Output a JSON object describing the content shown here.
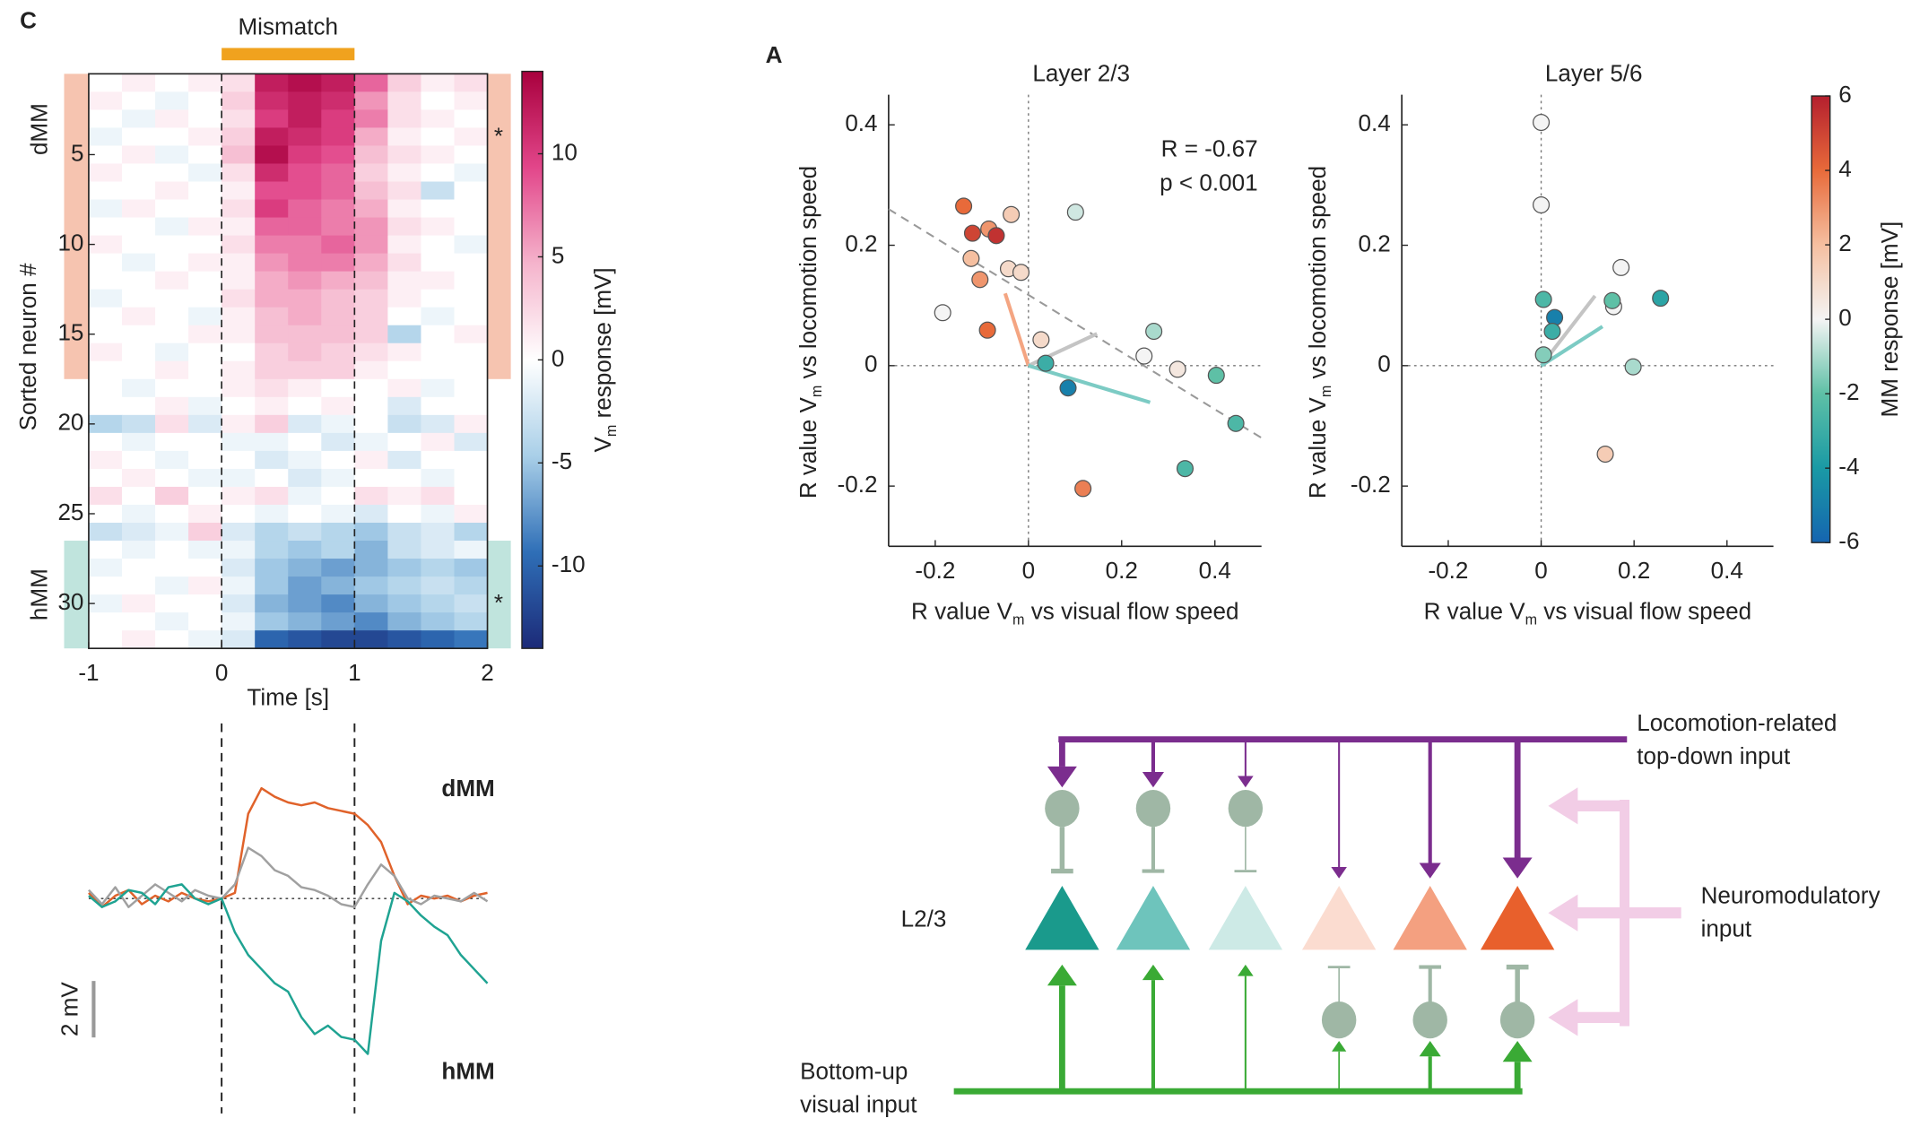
{
  "chart_data": [
    {
      "type": "heatmap",
      "panel_label": "C",
      "annotation": "Mismatch",
      "span": [
        0,
        1
      ],
      "xlabel": "Time [s]",
      "ylabel": "Sorted neuron #",
      "xlim": [
        -1,
        2
      ],
      "xticks": [
        -1,
        0,
        1,
        2
      ],
      "ylim": [
        0.5,
        32.5
      ],
      "yticks": [
        5,
        10,
        15,
        20,
        25,
        30
      ],
      "bins": [
        -1,
        -0.75,
        -0.5,
        -0.25,
        0,
        0.25,
        0.5,
        0.75,
        1,
        1.25,
        1.5,
        1.75,
        2
      ],
      "rows": [
        1,
        2,
        3,
        4,
        5,
        6,
        7,
        8,
        9,
        10,
        11,
        12,
        13,
        14,
        15,
        16,
        17,
        18,
        19,
        20,
        21,
        22,
        23,
        24,
        25,
        26,
        27,
        28,
        29,
        30,
        31,
        32
      ],
      "values": [
        [
          0,
          1,
          0,
          1,
          2,
          12,
          13,
          12,
          8,
          3,
          1,
          2
        ],
        [
          1,
          0,
          -1,
          0,
          3,
          11,
          12,
          11,
          6,
          2,
          0,
          1
        ],
        [
          0,
          -1,
          1,
          0,
          2,
          10,
          12,
          10,
          7,
          2,
          1,
          0
        ],
        [
          -1,
          0,
          0,
          1,
          3,
          12,
          11,
          10,
          5,
          1,
          0,
          1
        ],
        [
          0,
          1,
          -1,
          0,
          4,
          13,
          10,
          9,
          4,
          2,
          1,
          0
        ],
        [
          1,
          0,
          0,
          -1,
          2,
          11,
          9,
          8,
          3,
          1,
          0,
          -1
        ],
        [
          0,
          0,
          1,
          0,
          1,
          9,
          9,
          8,
          4,
          2,
          -3,
          0
        ],
        [
          -1,
          1,
          0,
          0,
          2,
          10,
          8,
          7,
          5,
          1,
          0,
          0
        ],
        [
          0,
          0,
          -1,
          1,
          1,
          8,
          8,
          7,
          6,
          2,
          1,
          0
        ],
        [
          1,
          0,
          0,
          0,
          2,
          7,
          7,
          8,
          6,
          1,
          0,
          -1
        ],
        [
          0,
          -1,
          0,
          1,
          1,
          6,
          7,
          7,
          5,
          2,
          0,
          0
        ],
        [
          0,
          0,
          1,
          0,
          1,
          5,
          6,
          5,
          4,
          1,
          1,
          0
        ],
        [
          -1,
          0,
          0,
          0,
          2,
          5,
          5,
          4,
          3,
          1,
          0,
          0
        ],
        [
          0,
          1,
          0,
          -1,
          1,
          4,
          5,
          4,
          3,
          0,
          -1,
          0
        ],
        [
          0,
          0,
          0,
          1,
          1,
          4,
          4,
          4,
          3,
          -4,
          0,
          1
        ],
        [
          1,
          0,
          -1,
          0,
          0,
          3,
          4,
          3,
          2,
          1,
          0,
          0
        ],
        [
          0,
          0,
          1,
          0,
          1,
          3,
          3,
          3,
          1,
          0,
          0,
          0
        ],
        [
          0,
          -1,
          0,
          0,
          1,
          2,
          1,
          0,
          0,
          1,
          -1,
          0
        ],
        [
          0,
          0,
          1,
          -1,
          0,
          1,
          0,
          1,
          0,
          -2,
          0,
          0
        ],
        [
          -4,
          -3,
          2,
          -2,
          1,
          3,
          -2,
          -1,
          0,
          -3,
          -2,
          1
        ],
        [
          0,
          -1,
          0,
          0,
          -1,
          -1,
          0,
          -2,
          -1,
          0,
          1,
          -2
        ],
        [
          1,
          0,
          -1,
          0,
          0,
          -2,
          -1,
          0,
          1,
          -2,
          0,
          0
        ],
        [
          0,
          1,
          0,
          -1,
          -1,
          0,
          -2,
          -1,
          0,
          0,
          -1,
          0
        ],
        [
          2,
          0,
          3,
          0,
          1,
          2,
          -1,
          0,
          2,
          1,
          2,
          0
        ],
        [
          0,
          -1,
          0,
          1,
          0,
          -1,
          0,
          -1,
          -2,
          0,
          -1,
          1
        ],
        [
          -3,
          -2,
          -1,
          3,
          -2,
          -4,
          -3,
          -4,
          -5,
          -3,
          -2,
          -4
        ],
        [
          0,
          -1,
          0,
          -1,
          -1,
          -4,
          -5,
          -4,
          -6,
          -3,
          -2,
          -1
        ],
        [
          -1,
          0,
          0,
          0,
          -2,
          -5,
          -6,
          -7,
          -6,
          -5,
          -4,
          -5
        ],
        [
          0,
          0,
          -1,
          1,
          -1,
          -5,
          -7,
          -6,
          -5,
          -4,
          -3,
          -4
        ],
        [
          -1,
          1,
          0,
          0,
          -2,
          -6,
          -7,
          -8,
          -6,
          -5,
          -4,
          -3
        ],
        [
          0,
          0,
          -1,
          0,
          -1,
          -5,
          -6,
          -7,
          -8,
          -6,
          -5,
          -4
        ],
        [
          0,
          1,
          0,
          -1,
          -2,
          -10,
          -11,
          -12,
          -12,
          -11,
          -10,
          -9
        ]
      ],
      "groups": [
        {
          "name": "dMM",
          "rows": [
            1,
            17
          ],
          "color": "#f6c4b0",
          "label_color": "#f2a98e",
          "marker": "*"
        },
        {
          "name": "hMM",
          "rows": [
            27,
            32
          ],
          "color": "#c0e4dd",
          "label_color": "#7fcbbd",
          "marker": "*"
        }
      ],
      "colorbar": {
        "clim": [
          -14,
          14
        ],
        "ticks": [
          -10,
          -5,
          0,
          5,
          10
        ],
        "label": {
          "text": "V",
          "sub": "m",
          "rest": " response [mV]"
        },
        "colormap": [
          "#1c2a78",
          "#2f6fb7",
          "#a9cfe8",
          "#ffffff",
          "#f5b4cc",
          "#e2468a",
          "#a8003d"
        ]
      }
    },
    {
      "type": "line",
      "xlim": [
        -1,
        2
      ],
      "ylim": [
        -7,
        5.5
      ],
      "span": [
        0,
        1
      ],
      "zero_line": true,
      "x": [
        -1,
        -0.9,
        -0.8,
        -0.7,
        -0.6,
        -0.5,
        -0.4,
        -0.3,
        -0.2,
        -0.1,
        0,
        0.1,
        0.2,
        0.3,
        0.4,
        0.5,
        0.6,
        0.7,
        0.8,
        0.9,
        1,
        1.1,
        1.2,
        1.3,
        1.4,
        1.5,
        1.6,
        1.7,
        1.8,
        1.9,
        2
      ],
      "series": [
        {
          "name": "dMM",
          "color": "#e0622a",
          "values": [
            0.2,
            -0.3,
            0.1,
            0.3,
            -0.2,
            0.1,
            -0.1,
            0.2,
            0,
            -0.1,
            0,
            0.2,
            3.0,
            3.9,
            3.6,
            3.4,
            3.3,
            3.4,
            3.2,
            3.1,
            3.0,
            2.6,
            2.0,
            0.8,
            -0.2,
            0.1,
            0,
            0.1,
            -0.1,
            0.1,
            0.2
          ]
        },
        {
          "color": "#a0a0a0",
          "values": [
            0.3,
            -0.2,
            0.4,
            -0.3,
            0.1,
            0.5,
            0.2,
            -0.1,
            0.3,
            0.1,
            0,
            0.5,
            1.8,
            1.5,
            1.0,
            0.8,
            0.4,
            0.3,
            0.1,
            -0.2,
            -0.3,
            0.5,
            1.2,
            0.8,
            0,
            -0.2,
            0.1,
            0,
            -0.1,
            0.2,
            -0.1
          ]
        },
        {
          "name": "hMM",
          "color": "#1fa392",
          "values": [
            0.1,
            -0.3,
            -0.1,
            0.3,
            0.2,
            -0.2,
            0.4,
            0.5,
            0,
            -0.2,
            0,
            -1.2,
            -2.0,
            -2.5,
            -3.0,
            -3.3,
            -4.2,
            -4.8,
            -4.5,
            -4.9,
            -5.0,
            -5.5,
            -1.5,
            0.2,
            -0.1,
            -0.6,
            -1.0,
            -1.3,
            -2.0,
            -2.5,
            -3.0
          ]
        }
      ],
      "scalebar": {
        "value": 2,
        "label": "2 mV"
      }
    },
    {
      "type": "scatter",
      "panel_label": "A",
      "title": "Layer 2/3",
      "title_color": "#8a8a8a",
      "xlabel": {
        "text": "R value V",
        "sub": "m",
        "rest": " vs visual flow speed"
      },
      "ylabel": {
        "text": "R value V",
        "sub": "m",
        "rest": " vs locomotion speed"
      },
      "xlim": [
        -0.3,
        0.5
      ],
      "ylim": [
        -0.3,
        0.45
      ],
      "xticks": [
        -0.2,
        0,
        0.2,
        0.4
      ],
      "yticks": [
        -0.2,
        0,
        0.2,
        0.4
      ],
      "zero_lines": true,
      "annotations": [
        "R = -0.67",
        "p < 0.001"
      ],
      "fit": {
        "x": [
          -0.3,
          0.5
        ],
        "y": [
          0.26,
          -0.12
        ]
      },
      "vectors": [
        {
          "color": "#f4a582",
          "x": -0.05,
          "y": 0.12
        },
        {
          "color": "#c4c4c4",
          "x": 0.147,
          "y": 0.053
        },
        {
          "color": "#7ccbc4",
          "x": 0.261,
          "y": -0.061
        }
      ],
      "x": [
        -0.139,
        -0.12,
        -0.085,
        -0.069,
        -0.037,
        -0.123,
        -0.104,
        -0.043,
        -0.016,
        -0.184,
        -0.088,
        0.101,
        0.027,
        0.037,
        0.085,
        0.117,
        0.269,
        0.248,
        0.32,
        0.403,
        0.445,
        0.336
      ],
      "y": [
        0.265,
        0.22,
        0.227,
        0.216,
        0.251,
        0.178,
        0.143,
        0.161,
        0.155,
        0.088,
        0.059,
        0.255,
        0.043,
        0.004,
        -0.037,
        -0.204,
        0.057,
        0.016,
        -0.006,
        -0.016,
        -0.096,
        -0.171
      ],
      "z": [
        4,
        5,
        3,
        5.5,
        1.5,
        2,
        3,
        1,
        1,
        0,
        4,
        -0.5,
        1,
        -3,
        -5,
        3.5,
        -1,
        0,
        0.5,
        -2,
        -2.5,
        -2.5
      ]
    },
    {
      "type": "scatter",
      "title": "Layer 5/6",
      "title_color": "#111111",
      "xlabel": {
        "text": "R value V",
        "sub": "m",
        "rest": " vs visual flow speed"
      },
      "ylabel": {
        "text": "R value V",
        "sub": "m",
        "rest": " vs locomotion speed"
      },
      "xlim": [
        -0.3,
        0.5
      ],
      "ylim": [
        -0.3,
        0.45
      ],
      "xticks": [
        -0.2,
        0,
        0.2,
        0.4
      ],
      "yticks": [
        -0.2,
        0,
        0.2,
        0.4
      ],
      "zero_lines": true,
      "vectors": [
        {
          "color": "#c4c4c4",
          "x": 0.116,
          "y": 0.116
        },
        {
          "color": "#7ccbc4",
          "x": 0.132,
          "y": 0.065
        }
      ],
      "x": [
        0,
        0,
        0.005,
        0.029,
        0.024,
        0.005,
        0.172,
        0.156,
        0.153,
        0.257,
        0.198,
        0.138
      ],
      "y": [
        0.404,
        0.267,
        0.11,
        0.08,
        0.057,
        0.018,
        0.163,
        0.098,
        0.108,
        0.112,
        -0.002,
        -0.147
      ],
      "z": [
        0,
        0,
        -2.5,
        -5,
        -3,
        -1.5,
        0,
        0,
        -2,
        -3.5,
        -1,
        1.5
      ],
      "colorbar": {
        "clim": [
          -6,
          6
        ],
        "ticks": [
          -6,
          -4,
          -2,
          0,
          2,
          4,
          6
        ],
        "label": "MM response [mV]",
        "colormap": [
          "#1565b0",
          "#1a9aa5",
          "#5ec0a6",
          "#f4f4f4",
          "#f5bfa0",
          "#e86a3a",
          "#b41f2e"
        ]
      }
    }
  ],
  "diagram": {
    "layer_label": "L2/3",
    "top_down": [
      "Locomotion-related",
      "top-down input"
    ],
    "neuromodulatory": [
      "Neuromodulatory",
      "input"
    ],
    "bottom_up": [
      "Bottom-up",
      "visual input"
    ]
  }
}
